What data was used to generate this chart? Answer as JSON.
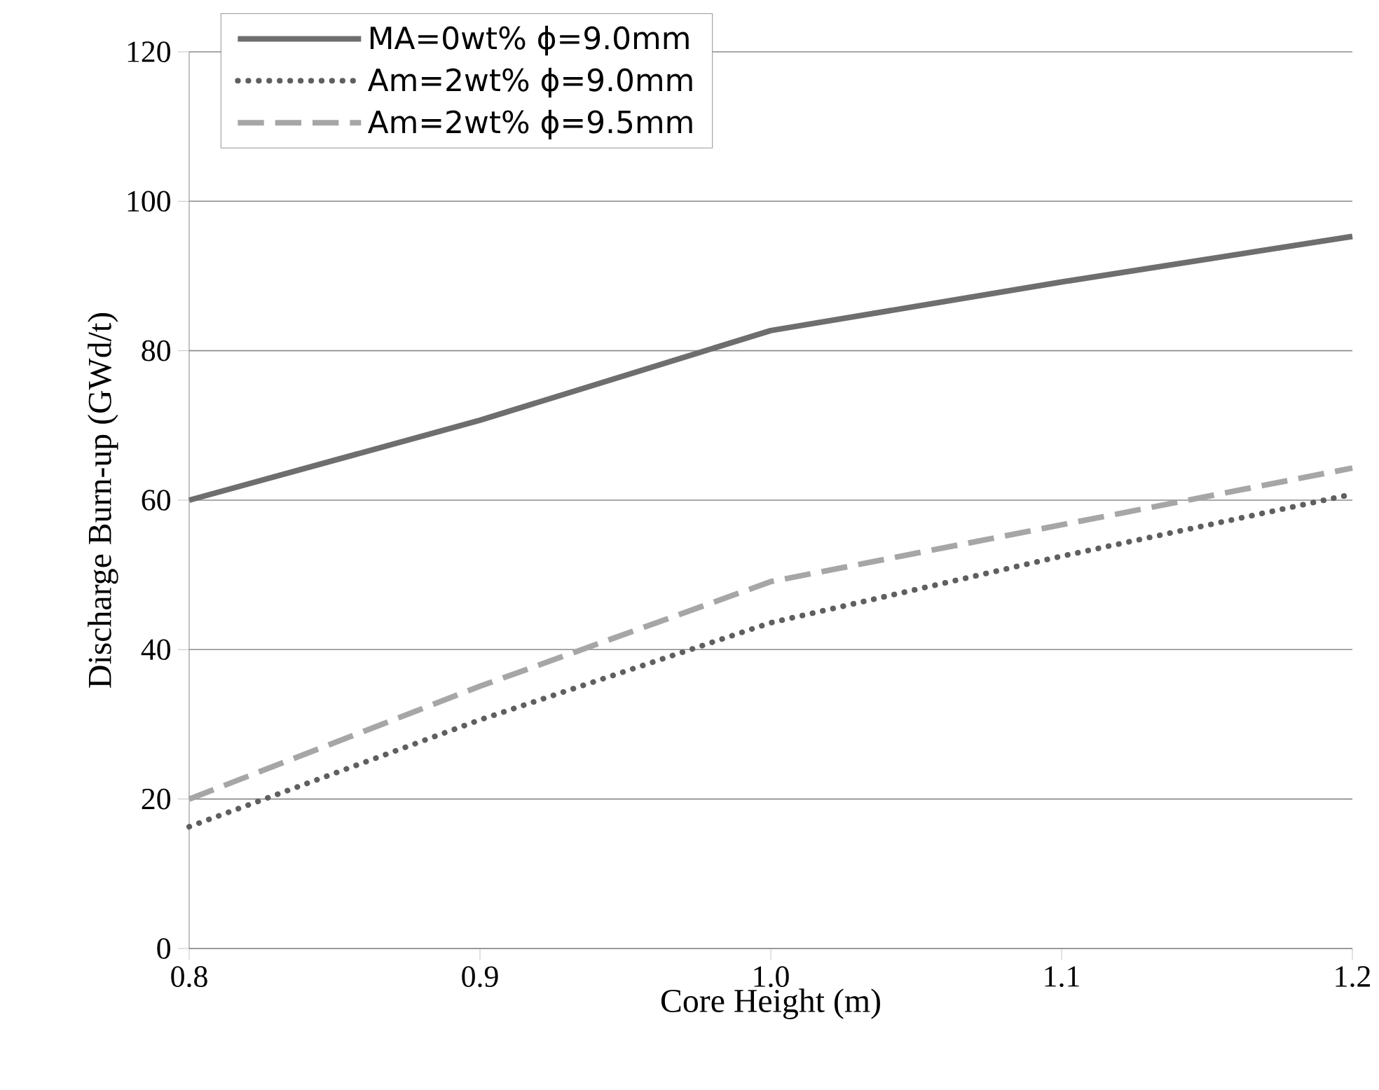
{
  "chart_data": {
    "type": "line",
    "xlabel": "Core Height (m)",
    "ylabel": "Discharge Burn-up (GWd/t)",
    "x": [
      0.8,
      0.9,
      1.0,
      1.1,
      1.2
    ],
    "series": [
      {
        "name": "MA=0wt% ϕ=9.0mm",
        "color": "#6e6e6e",
        "line_style": "solid",
        "values": [
          60,
          70.7,
          82.7,
          89.2,
          95.3
        ]
      },
      {
        "name": "Am=2wt% ϕ=9.0mm",
        "color": "#5f5f5f",
        "line_style": "dotted",
        "values": [
          16.3,
          30.6,
          43.6,
          52.5,
          60.8
        ]
      },
      {
        "name": "Am=2wt% ϕ=9.5mm",
        "color": "#a6a6a6",
        "line_style": "dashed",
        "values": [
          20,
          35.1,
          49.1,
          56.7,
          64.3
        ]
      }
    ],
    "xlim": [
      0.8,
      1.2
    ],
    "ylim": [
      0,
      120
    ],
    "xticks": [
      0.8,
      0.9,
      {
        "value": 1.0,
        "label": "1.0"
      },
      1.1,
      1.2
    ],
    "yticks": [
      0,
      20,
      40,
      60,
      80,
      100,
      120
    ],
    "grid": "y",
    "legend": "top left",
    "marker": "none"
  }
}
